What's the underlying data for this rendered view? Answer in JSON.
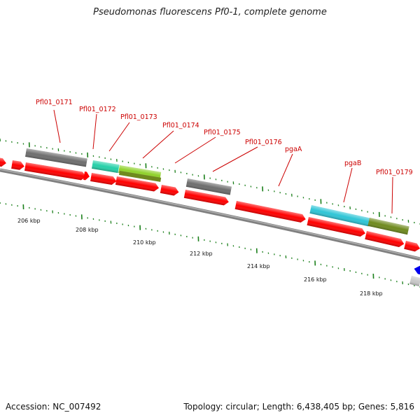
{
  "header": {
    "title": "Pseudomonas fluorescens Pf0-1, complete genome"
  },
  "footer": {
    "accession": "Accession: NC_007492",
    "topology": "Topology: circular; Length: 6,438,405 bp; Genes: 5,816"
  },
  "colors": {
    "backbone": "#808080",
    "tick": "#1a7f1a",
    "cds": "#ff0000",
    "gray_feature": "#6e6e6e",
    "teal_feature": "#25d0a8",
    "lime_feature": "#8fd12a",
    "olive_feature": "#6f8a1e",
    "cyan_feature": "#2ec5d6",
    "label": "#cc0000",
    "blue_feature": "#0000ee",
    "light_gray_feature": "#c8c8c8"
  },
  "kbp_labels": [
    "206 kbp",
    "208 kbp",
    "210 kbp",
    "212 kbp",
    "214 kbp",
    "216 kbp",
    "218 kbp"
  ],
  "gene_labels": [
    "Pfl01_0171",
    "Pfl01_0172",
    "Pfl01_0173",
    "Pfl01_0174",
    "Pfl01_0175",
    "Pfl01_0176",
    "pgaA",
    "pgaB",
    "Pfl01_0179"
  ]
}
